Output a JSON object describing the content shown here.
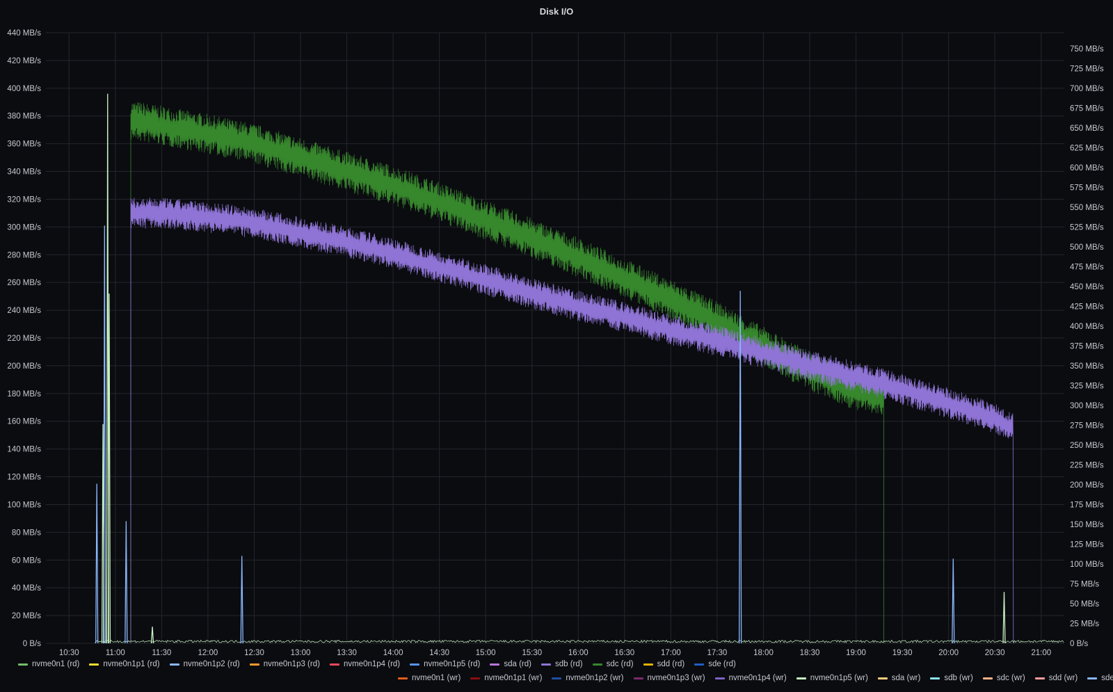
{
  "panel": {
    "title": "Disk I/O"
  },
  "chart_data": {
    "type": "line",
    "title": "Disk I/O",
    "y_left": {
      "unit": "MB/s",
      "range": [
        0,
        440
      ],
      "ticks": [
        "0 B/s",
        "20 MB/s",
        "40 MB/s",
        "60 MB/s",
        "80 MB/s",
        "100 MB/s",
        "120 MB/s",
        "140 MB/s",
        "160 MB/s",
        "180 MB/s",
        "200 MB/s",
        "220 MB/s",
        "240 MB/s",
        "260 MB/s",
        "280 MB/s",
        "300 MB/s",
        "320 MB/s",
        "340 MB/s",
        "360 MB/s",
        "380 MB/s",
        "400 MB/s",
        "420 MB/s",
        "440 MB/s"
      ]
    },
    "y_right": {
      "unit": "MB/s",
      "range": [
        0,
        770
      ],
      "ticks": [
        "0 B/s",
        "25 MB/s",
        "50 MB/s",
        "75 MB/s",
        "100 MB/s",
        "125 MB/s",
        "150 MB/s",
        "175 MB/s",
        "200 MB/s",
        "225 MB/s",
        "250 MB/s",
        "275 MB/s",
        "300 MB/s",
        "325 MB/s",
        "350 MB/s",
        "375 MB/s",
        "400 MB/s",
        "425 MB/s",
        "450 MB/s",
        "475 MB/s",
        "500 MB/s",
        "525 MB/s",
        "550 MB/s",
        "575 MB/s",
        "600 MB/s",
        "625 MB/s",
        "650 MB/s",
        "675 MB/s",
        "700 MB/s",
        "725 MB/s",
        "750 MB/s"
      ]
    },
    "x_ticks": [
      "10:30",
      "11:00",
      "11:30",
      "12:00",
      "12:30",
      "13:00",
      "13:30",
      "14:00",
      "14:30",
      "15:00",
      "15:30",
      "16:00",
      "16:30",
      "17:00",
      "17:30",
      "18:00",
      "18:30",
      "19:00",
      "19:30",
      "20:00",
      "20:30",
      "21:00"
    ],
    "x_range": [
      "10:15",
      "21:15"
    ],
    "grid": true,
    "legend_placement": "bottom",
    "series": [
      {
        "name": "sdc (rd)",
        "color": "#37872d",
        "axis": "left",
        "x": [
          "11:10",
          "11:30",
          "12:00",
          "12:30",
          "13:00",
          "13:30",
          "14:00",
          "14:30",
          "15:00",
          "15:30",
          "16:00",
          "16:30",
          "17:00",
          "17:30",
          "18:00",
          "18:30",
          "19:00",
          "19:18"
        ],
        "y": [
          377,
          373,
          367,
          360,
          350,
          340,
          330,
          318,
          305,
          292,
          278,
          263,
          248,
          232,
          214,
          196,
          182,
          177
        ],
        "spread": 13
      },
      {
        "name": "sdb (rd)",
        "color": "#8f74d6",
        "axis": "left",
        "x": [
          "11:10",
          "11:30",
          "12:00",
          "12:30",
          "13:00",
          "13:30",
          "14:00",
          "14:30",
          "15:00",
          "15:30",
          "16:00",
          "16:30",
          "17:00",
          "17:30",
          "18:00",
          "18:30",
          "19:00",
          "19:30",
          "20:00",
          "20:30",
          "20:42"
        ],
        "y": [
          310,
          310,
          307,
          303,
          296,
          289,
          281,
          271,
          262,
          252,
          243,
          235,
          226,
          218,
          209,
          200,
          192,
          183,
          173,
          162,
          155
        ],
        "spread": 10
      },
      {
        "name": "nvme0n1p2 (rd)",
        "color": "#8ab8ff",
        "axis": "left",
        "spikes": [
          [
            "10:48",
            115
          ],
          [
            "10:53",
            301
          ],
          [
            "11:07",
            88
          ],
          [
            "12:22",
            63
          ],
          [
            "17:45",
            254
          ],
          [
            "20:03",
            61
          ]
        ]
      },
      {
        "name": "nvme0n1p5 (wr)",
        "color": "#c8f2c2",
        "axis": "left",
        "spikes": [
          [
            "10:52",
            158
          ],
          [
            "10:55",
            396
          ],
          [
            "10:56",
            252
          ],
          [
            "11:24",
            12
          ],
          [
            "20:36",
            37
          ]
        ]
      }
    ]
  },
  "legend": {
    "row1": [
      {
        "name": "nvme0n1 (rd)",
        "color": "#73bf69"
      },
      {
        "name": "nvme0n1p1 (rd)",
        "color": "#fade2a"
      },
      {
        "name": "nvme0n1p2 (rd)",
        "color": "#8ab8ff"
      },
      {
        "name": "nvme0n1p3 (rd)",
        "color": "#ff9830"
      },
      {
        "name": "nvme0n1p4 (rd)",
        "color": "#f2495c"
      },
      {
        "name": "nvme0n1p5 (rd)",
        "color": "#5794f2"
      },
      {
        "name": "sda (rd)",
        "color": "#b877d9"
      },
      {
        "name": "sdb (rd)",
        "color": "#8f74d6"
      },
      {
        "name": "sdc (rd)",
        "color": "#37872d"
      },
      {
        "name": "sdd (rd)",
        "color": "#e0b400"
      },
      {
        "name": "sde (rd)",
        "color": "#1f60c4"
      }
    ],
    "row2": [
      {
        "name": "nvme0n1 (wr)",
        "color": "#e55c1a"
      },
      {
        "name": "nvme0n1p1 (wr)",
        "color": "#8a0f0f"
      },
      {
        "name": "nvme0n1p2 (wr)",
        "color": "#1f4fa0"
      },
      {
        "name": "nvme0n1p3 (wr)",
        "color": "#7c2a6e"
      },
      {
        "name": "nvme0n1p4 (wr)",
        "color": "#7d64c4"
      },
      {
        "name": "nvme0n1p5 (wr)",
        "color": "#c8f2c2"
      },
      {
        "name": "sda (wr)",
        "color": "#ffcb7d"
      },
      {
        "name": "sdb (wr)",
        "color": "#8ae6f2"
      },
      {
        "name": "sdc (wr)",
        "color": "#ffb38a"
      },
      {
        "name": "sdd (wr)",
        "color": "#ff9d9d"
      },
      {
        "name": "sde (wr)",
        "color": "#8ab8ff"
      }
    ]
  }
}
